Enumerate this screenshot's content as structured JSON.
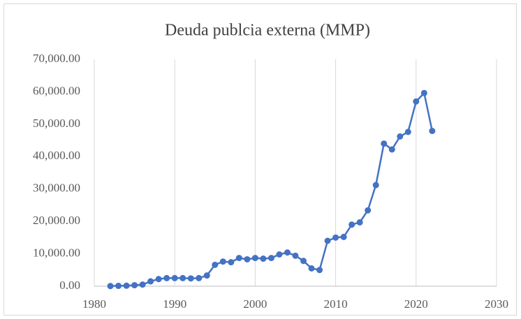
{
  "chart_data": {
    "type": "line",
    "title": "Deuda publcia externa (MMP)",
    "x": [
      1982,
      1983,
      1984,
      1985,
      1986,
      1987,
      1988,
      1989,
      1990,
      1991,
      1992,
      1993,
      1994,
      1995,
      1996,
      1997,
      1998,
      1999,
      2000,
      2001,
      2002,
      2003,
      2004,
      2005,
      2006,
      2007,
      2008,
      2009,
      2010,
      2011,
      2012,
      2013,
      2014,
      2015,
      2016,
      2017,
      2018,
      2019,
      2020,
      2021,
      2022
    ],
    "series": [
      {
        "name": "Deuda publcia externa (MMP)",
        "color": "#4472c4",
        "values": [
          50,
          100,
          150,
          300,
          500,
          1500,
          2200,
          2500,
          2500,
          2500,
          2400,
          2500,
          3300,
          6600,
          7600,
          7400,
          8700,
          8300,
          8700,
          8500,
          8700,
          9800,
          10400,
          9400,
          7800,
          5500,
          5000,
          14000,
          15000,
          15200,
          19000,
          19700,
          23400,
          31200,
          44000,
          42200,
          46200,
          47600,
          57000,
          59600,
          47900
        ]
      }
    ],
    "xlim": [
      1980,
      2030
    ],
    "xticks": [
      1980,
      1990,
      2000,
      2010,
      2020,
      2030
    ],
    "ylim": [
      0,
      70000
    ],
    "yticks": [
      {
        "value": 0,
        "label": "0.00"
      },
      {
        "value": 10000,
        "label": "10,000.00"
      },
      {
        "value": 20000,
        "label": "20,000.00"
      },
      {
        "value": 30000,
        "label": "30,000.00"
      },
      {
        "value": 40000,
        "label": "40,000.00"
      },
      {
        "value": 50000,
        "label": "50,000.00"
      },
      {
        "value": 60000,
        "label": "60,000.00"
      },
      {
        "value": 70000,
        "label": "70,000.00"
      }
    ],
    "grid": "x"
  }
}
